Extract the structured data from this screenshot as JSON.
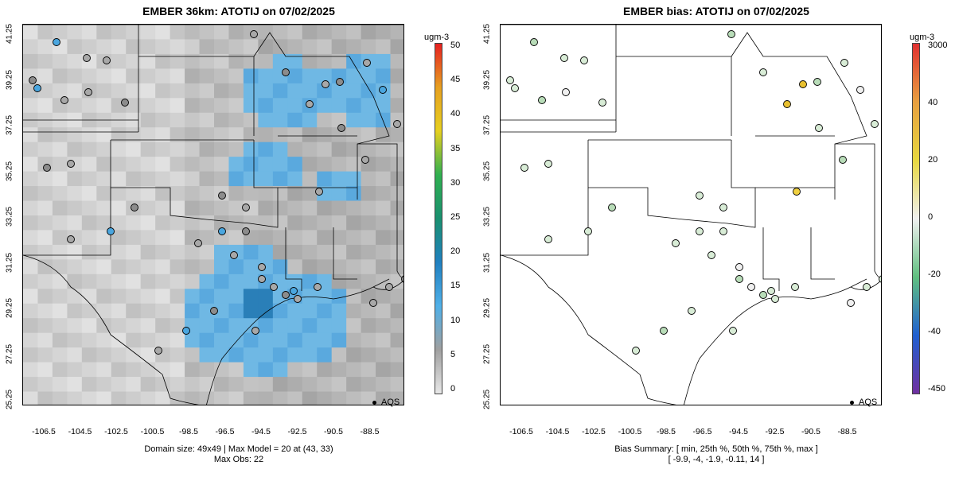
{
  "left_panel": {
    "title": "EMBER 36km: ATOTIJ on 07/02/2025",
    "footer_line1": "Domain size: 49x49 | Max Model = 20 at (43, 33)",
    "footer_line2": "Max Obs: 22",
    "legend_label": "AQS",
    "colorbar": {
      "unit": "ugm-3",
      "ticks": [
        "50",
        "45",
        "40",
        "35",
        "30",
        "25",
        "20",
        "15",
        "10",
        "5",
        "0"
      ],
      "colors": [
        "#e62020",
        "#e6a020",
        "#e6d020",
        "#30b050",
        "#1a9070",
        "#2080c0",
        "#50b0e8",
        "#a0a0a0",
        "#e8e8e8"
      ]
    }
  },
  "right_panel": {
    "title": "EMBER bias: ATOTIJ on 07/02/2025",
    "footer_line1": "Bias Summary: [ min, 25th %, 50th %, 75th %, max ]",
    "footer_line2": "[ -9.9,   -4,   -1.9,   -0.11,   14 ]",
    "legend_label": "AQS",
    "colorbar": {
      "unit": "ugm-3",
      "ticks": [
        "3000",
        "40",
        "20",
        "0",
        "-20",
        "-40",
        "-450"
      ],
      "colors": [
        "#e03030",
        "#e8a040",
        "#e8d840",
        "#f0f0f0",
        "#60c080",
        "#2060d0",
        "#7030a0"
      ]
    }
  },
  "axes": {
    "y_ticks": [
      "41.25",
      "39.25",
      "37.25",
      "35.25",
      "33.25",
      "31.25",
      "29.25",
      "27.25",
      "25.25"
    ],
    "x_ticks": [
      "-106.5",
      "-104.5",
      "-102.5",
      "-100.5",
      "-98.5",
      "-96.5",
      "-94.5",
      "-92.5",
      "-90.5",
      "-88.5"
    ]
  }
}
